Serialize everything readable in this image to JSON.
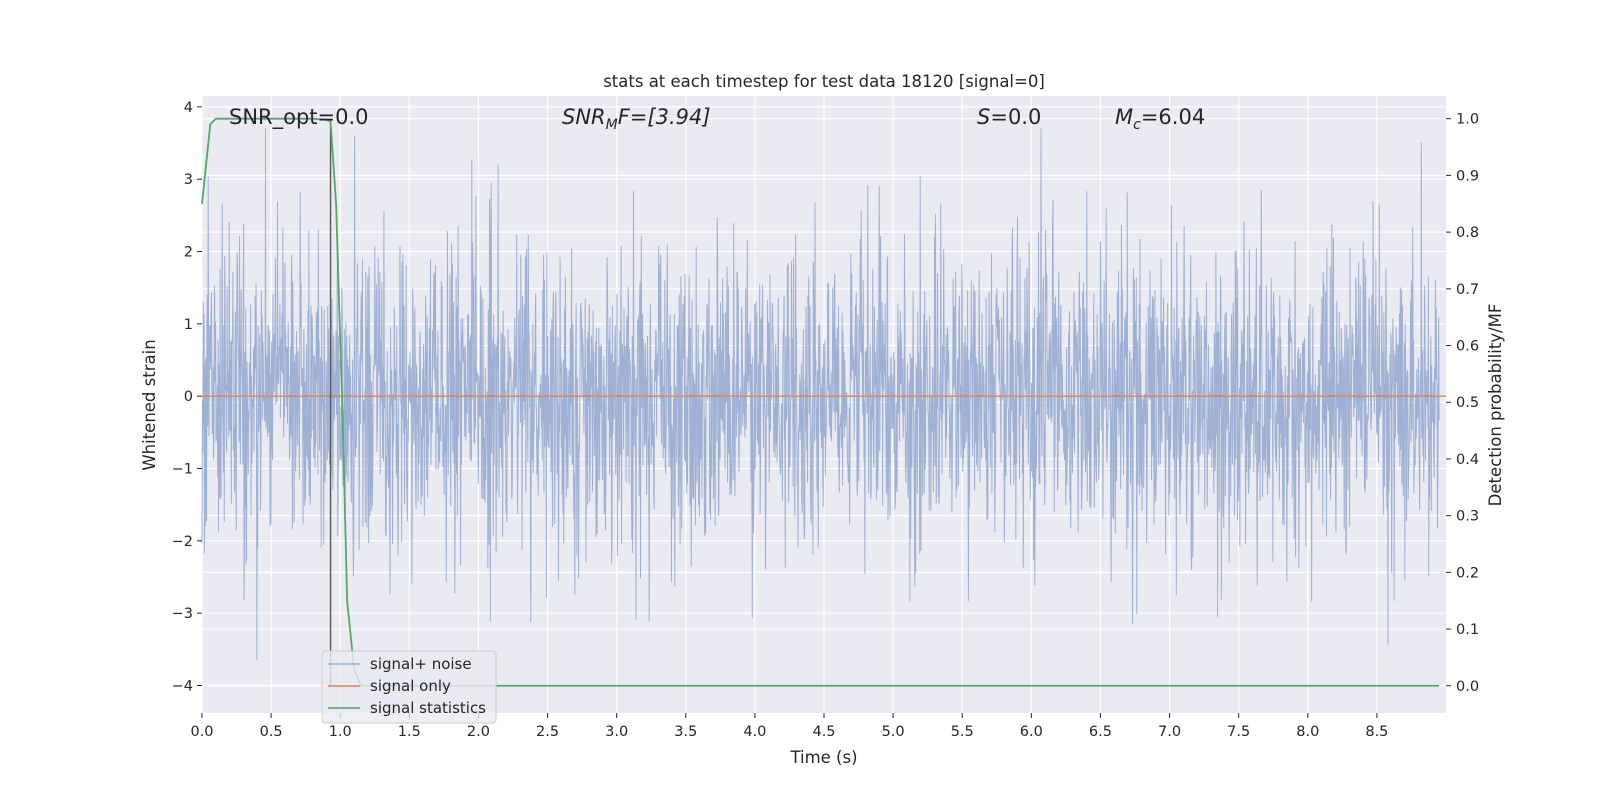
{
  "chart_data": {
    "type": "line",
    "title": "stats at each timestep for test data 18120 [signal=0]",
    "xlabel": "Time (s)",
    "ylabel": "Whitened strain",
    "y2label": "Detection probability/MF",
    "xlim": [
      0.0,
      9.0
    ],
    "ylim": [
      -4.38,
      4.15
    ],
    "y2lim": [
      -0.048,
      1.04
    ],
    "xticks": [
      "0.0",
      "0.5",
      "1.0",
      "1.5",
      "2.0",
      "2.5",
      "3.0",
      "3.5",
      "4.0",
      "4.5",
      "5.0",
      "5.5",
      "6.0",
      "6.5",
      "7.0",
      "7.5",
      "8.0",
      "8.5"
    ],
    "yticks": [
      "4",
      "3",
      "2",
      "1",
      "0",
      "−1",
      "−2",
      "−3",
      "−4"
    ],
    "y2ticks": [
      "1.0",
      "0.9",
      "0.8",
      "0.7",
      "0.6",
      "0.5",
      "0.4",
      "0.3",
      "0.2",
      "0.1",
      "0.0"
    ],
    "grid": true,
    "legend_position": "lower-left",
    "annotations": {
      "snr_opt": "SNR_opt=0.0",
      "snr_mf_main": "SNR",
      "snr_mf_sub": "M",
      "snr_mf_rest": "F=[3.94]",
      "s_main": "S",
      "s_rest": "=0.0",
      "mc_main": "M",
      "mc_sub": "c",
      "mc_rest": "=6.04"
    },
    "marker_x": 0.93,
    "series": [
      {
        "name": "signal+ noise",
        "color": "#9aadd1",
        "axis": "left",
        "description_values": "whitened noise, approx. Gaussian, range about −3.6 to 3.7",
        "amplitude_envelope": [
          1.0,
          1.0
        ],
        "seed": 18120
      },
      {
        "name": "signal only",
        "color": "#dd8452",
        "axis": "left",
        "x": [
          0.0,
          9.0
        ],
        "y": [
          0.0,
          0.0
        ]
      },
      {
        "name": "signal statistics",
        "color": "#55a868",
        "axis": "right",
        "x": [
          0.0,
          0.06,
          0.1,
          0.2,
          0.4,
          0.6,
          0.8,
          0.9,
          0.93,
          0.97,
          1.02,
          1.05,
          1.1,
          1.15,
          1.3,
          2.0,
          4.0,
          6.0,
          8.0,
          8.95
        ],
        "y": [
          0.85,
          0.99,
          1.0,
          1.0,
          1.0,
          1.0,
          1.0,
          0.998,
          0.995,
          0.85,
          0.45,
          0.15,
          0.03,
          0.0,
          0.0,
          0.0,
          0.0,
          0.0,
          0.0,
          0.0
        ]
      }
    ],
    "colors": {
      "background": "#eaeaf2",
      "grid": "#ffffff",
      "marker_line": "#555555"
    }
  }
}
